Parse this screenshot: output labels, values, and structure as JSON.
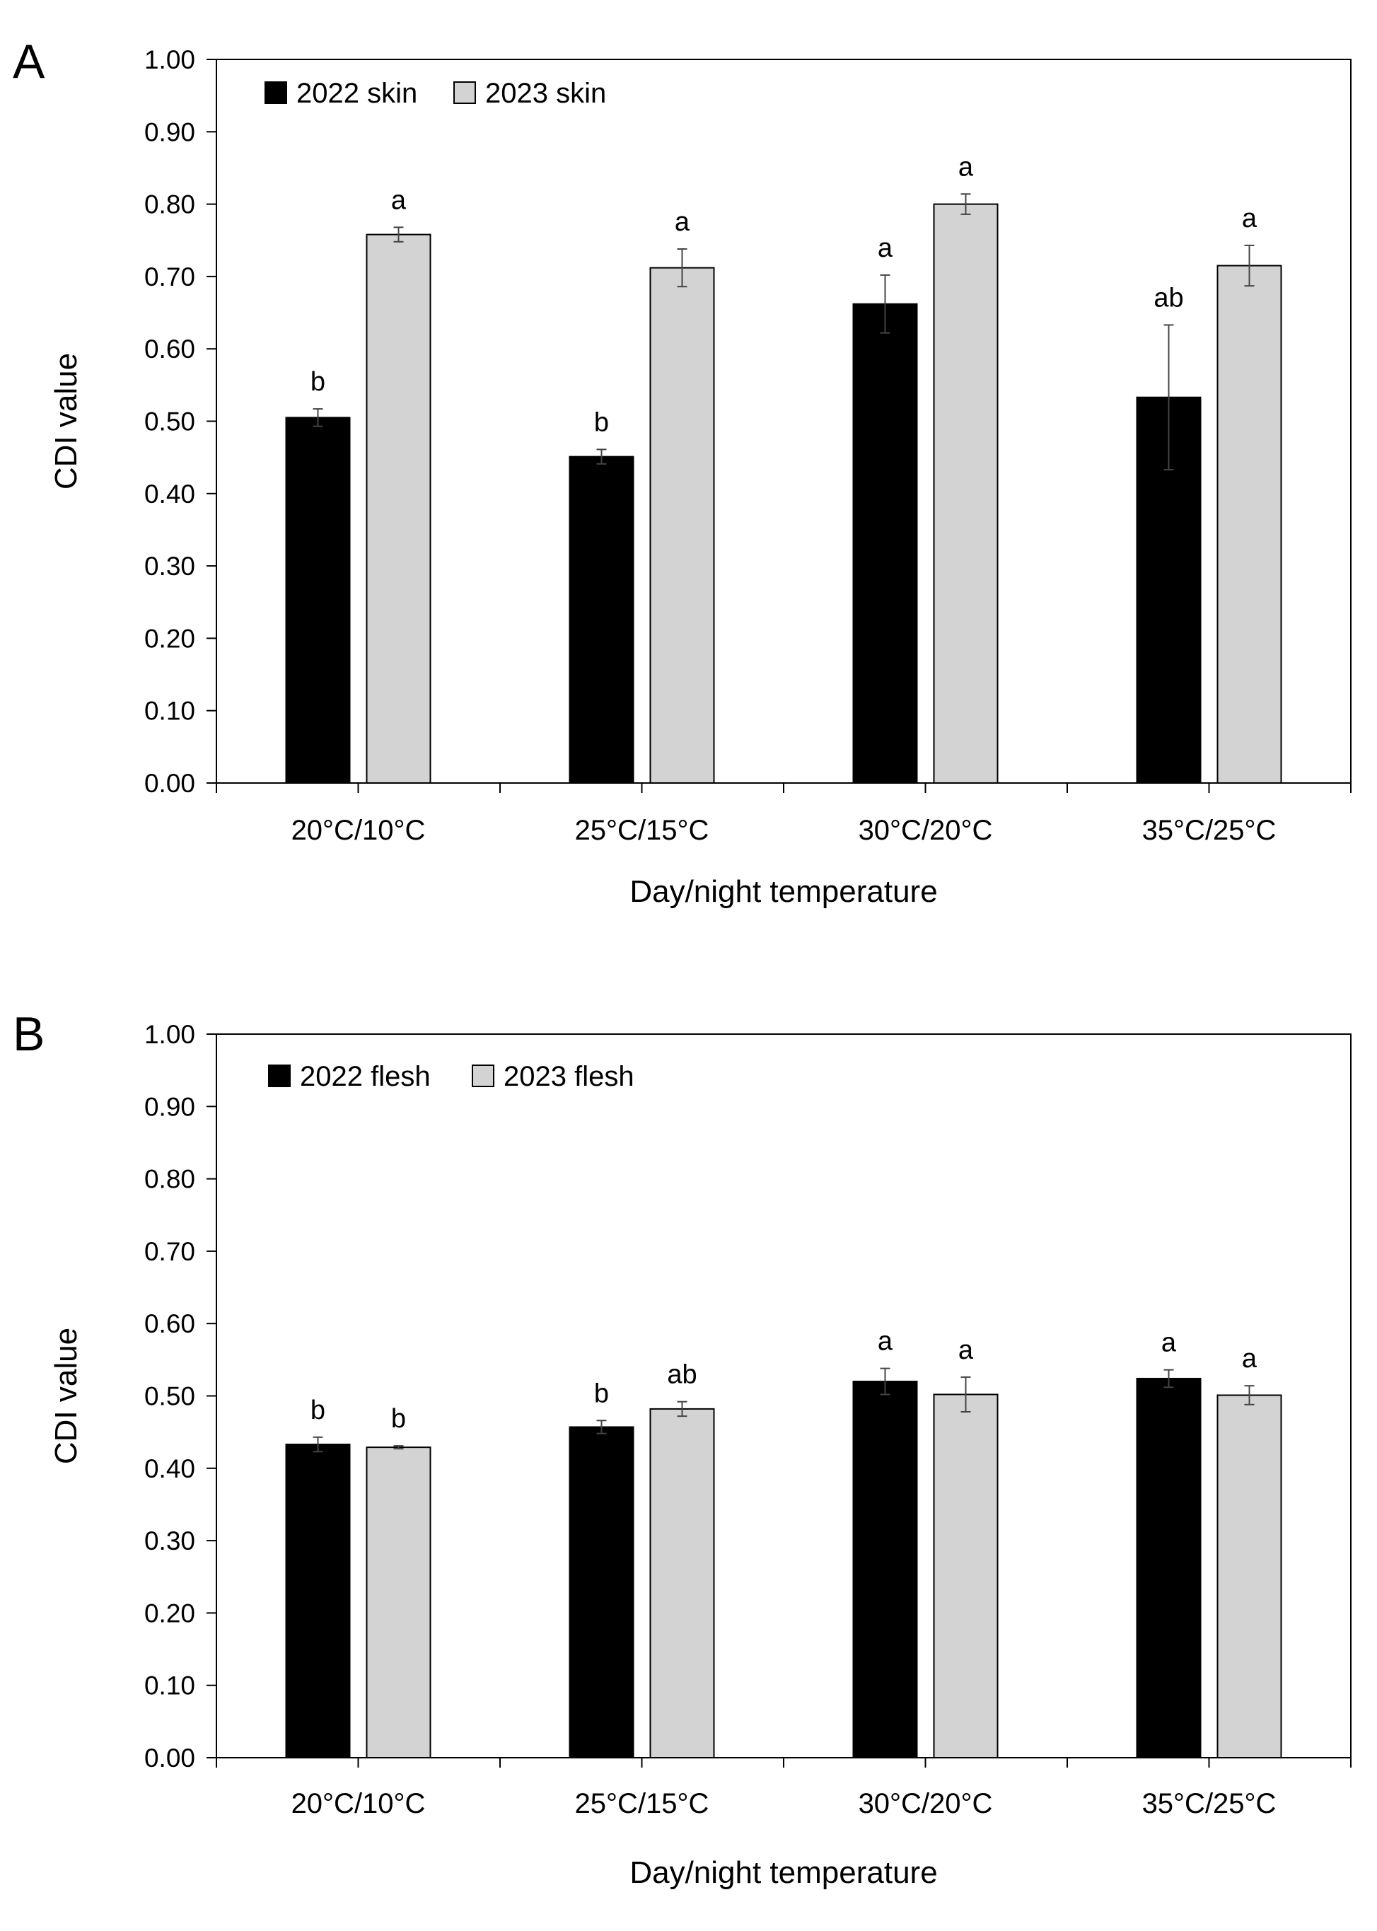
{
  "figure": {
    "colors": {
      "series_2022": "#000000",
      "series_2023": "#d3d3d3",
      "axis": "#000000",
      "error_bar": "#444444"
    }
  },
  "chart_data": [
    {
      "panel_label": "A",
      "type": "bar",
      "title": "",
      "xlabel": "Day/night temperature",
      "ylabel": "CDI value",
      "ylim": [
        0,
        1.0
      ],
      "yticks": [
        "0.00",
        "0.10",
        "0.20",
        "0.30",
        "0.40",
        "0.50",
        "0.60",
        "0.70",
        "0.80",
        "0.90",
        "1.00"
      ],
      "grid": false,
      "legend_position": "top-left",
      "categories": [
        "20°C/10°C",
        "25°C/15°C",
        "30°C/20°C",
        "35°C/25°C"
      ],
      "series": [
        {
          "name": "2022 skin",
          "color": "#000000",
          "values": [
            0.505,
            0.451,
            0.662,
            0.533
          ],
          "errors": [
            0.012,
            0.01,
            0.04,
            0.1
          ],
          "labels": [
            "b",
            "b",
            "a",
            "ab"
          ]
        },
        {
          "name": "2023 skin",
          "color": "#d3d3d3",
          "values": [
            0.758,
            0.712,
            0.8,
            0.715
          ],
          "errors": [
            0.01,
            0.026,
            0.014,
            0.028
          ],
          "labels": [
            "a",
            "a",
            "a",
            "a"
          ]
        }
      ]
    },
    {
      "panel_label": "B",
      "type": "bar",
      "title": "",
      "xlabel": "Day/night temperature",
      "ylabel": "CDI value",
      "ylim": [
        0,
        1.0
      ],
      "yticks": [
        "0.00",
        "0.10",
        "0.20",
        "0.30",
        "0.40",
        "0.50",
        "0.60",
        "0.70",
        "0.80",
        "0.90",
        "1.00"
      ],
      "grid": false,
      "legend_position": "top-left",
      "categories": [
        "20°C/10°C",
        "25°C/15°C",
        "30°C/20°C",
        "35°C/25°C"
      ],
      "series": [
        {
          "name": "2022 flesh",
          "color": "#000000",
          "values": [
            0.433,
            0.457,
            0.52,
            0.524
          ],
          "errors": [
            0.01,
            0.009,
            0.018,
            0.012
          ],
          "labels": [
            "b",
            "b",
            "a",
            "a"
          ]
        },
        {
          "name": "2023 flesh",
          "color": "#d3d3d3",
          "values": [
            0.429,
            0.482,
            0.502,
            0.501
          ],
          "errors": [
            0.002,
            0.01,
            0.024,
            0.013
          ],
          "labels": [
            "b",
            "ab",
            "a",
            "a"
          ]
        }
      ]
    }
  ]
}
